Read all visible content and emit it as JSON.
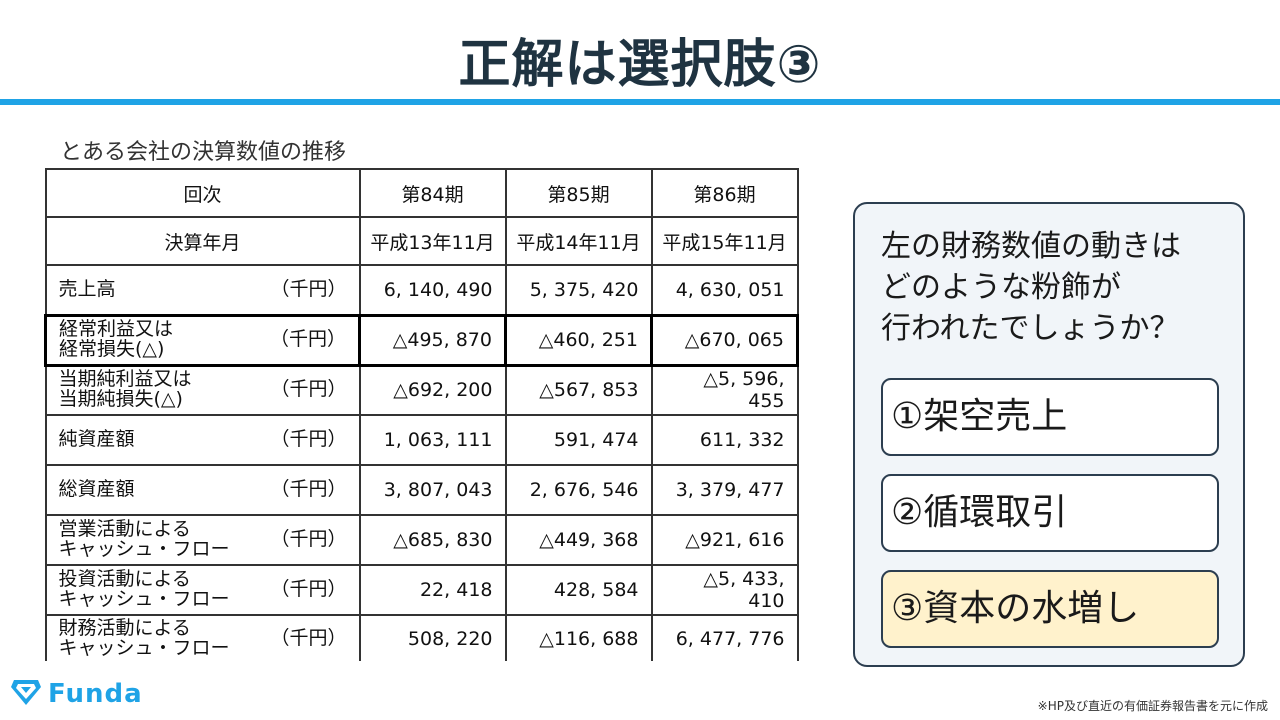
{
  "title": "正解は選択肢③",
  "caption": "とある会社の決算数値の推移",
  "table": {
    "header_label": "回次",
    "periods": [
      "第84期",
      "第85期",
      "第86期"
    ],
    "date_label": "決算年月",
    "dates": [
      "平成13年11月",
      "平成14年11月",
      "平成15年11月"
    ],
    "rows": [
      {
        "label": "売上高",
        "unit": "（千円）",
        "values": [
          "6, 140, 490",
          "5, 375, 420",
          "4, 630, 051"
        ]
      },
      {
        "label": "経常利益又は\n経常損失(△)",
        "unit": "（千円）",
        "values": [
          "△495, 870",
          "△460, 251",
          "△670, 065"
        ]
      },
      {
        "label": "当期純利益又は\n当期純損失(△)",
        "unit": "（千円）",
        "values": [
          "△692, 200",
          "△567, 853",
          "△5, 596, 455"
        ]
      },
      {
        "label": "純資産額",
        "unit": "（千円）",
        "values": [
          "1, 063, 111",
          "591, 474",
          "611, 332"
        ]
      },
      {
        "label": "総資産額",
        "unit": "（千円）",
        "values": [
          "3, 807, 043",
          "2, 676, 546",
          "3, 379, 477"
        ]
      },
      {
        "label": "営業活動による\nキャッシュ・フロー",
        "unit": "（千円）",
        "values": [
          "△685, 830",
          "△449, 368",
          "△921, 616"
        ]
      },
      {
        "label": "投資活動による\nキャッシュ・フロー",
        "unit": "（千円）",
        "values": [
          "22, 418",
          "428, 584",
          "△5, 433, 410"
        ]
      },
      {
        "label": "財務活動による\nキャッシュ・フロー",
        "unit": "（千円）",
        "values": [
          "508, 220",
          "△116, 688",
          "6, 477, 776"
        ]
      }
    ]
  },
  "panel": {
    "question": "左の財務数値の動きは\nどのような粉飾が\n行われたでしょうか？",
    "options": [
      {
        "label": "①架空売上",
        "selected": false
      },
      {
        "label": "②循環取引",
        "selected": false
      },
      {
        "label": "③資本の水増し",
        "selected": true
      }
    ],
    "selected_color": "#fff2cc"
  },
  "brand": {
    "name": "Funda",
    "color": "#1fa3e6",
    "icon": "funda-logo-icon"
  },
  "footnote": "※HP及び直近の有価証券報告書を元に作成",
  "accent_color": "#1fa3e6"
}
